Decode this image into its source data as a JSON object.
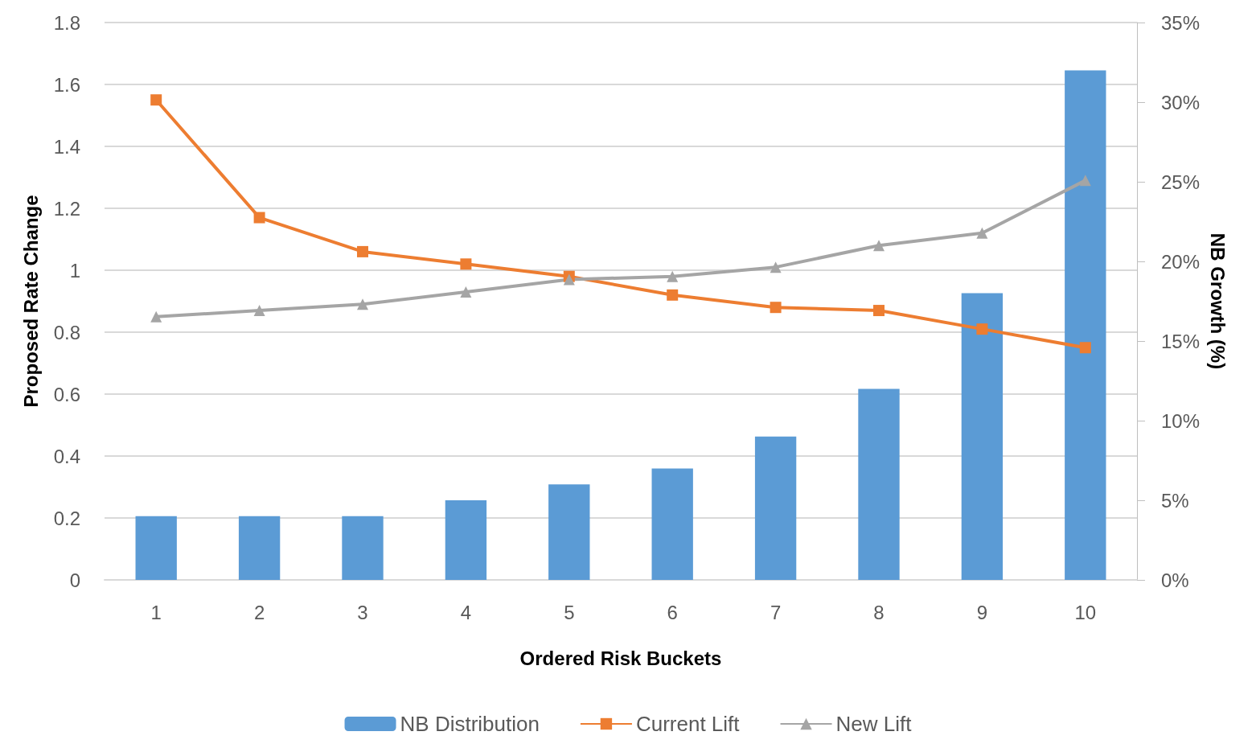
{
  "chart_data": {
    "type": "bar",
    "xlabel": "Ordered Risk Buckets",
    "ylabel": "Proposed Rate Change",
    "y2label": "NB Growth (%)",
    "categories": [
      "1",
      "2",
      "3",
      "4",
      "5",
      "6",
      "7",
      "8",
      "9",
      "10"
    ],
    "series": [
      {
        "name": "NB Distribution",
        "axis": "y2",
        "color": "#5b9bd5",
        "values": [
          4,
          4,
          4,
          5,
          6,
          7,
          9,
          12,
          18,
          32
        ]
      },
      {
        "name": "Current Lift",
        "type": "line",
        "marker": "square",
        "color": "#ed7d31",
        "values": [
          1.55,
          1.17,
          1.06,
          1.02,
          0.98,
          0.92,
          0.88,
          0.87,
          0.81,
          0.75
        ]
      },
      {
        "name": "New Lift",
        "type": "line",
        "marker": "triangle",
        "color": "#a5a5a5",
        "values": [
          0.85,
          0.87,
          0.89,
          0.93,
          0.97,
          0.98,
          1.01,
          1.08,
          1.12,
          1.29
        ]
      }
    ],
    "ylim": [
      0,
      1.8
    ],
    "yticks": [
      0,
      0.2,
      0.4,
      0.6,
      0.8,
      1,
      1.2,
      1.4,
      1.6,
      1.8
    ],
    "y2lim": [
      0,
      35
    ],
    "y2ticks": [
      {
        "value": 0,
        "label": "0%"
      },
      {
        "value": 5,
        "label": "5%"
      },
      {
        "value": 10,
        "label": "10%"
      },
      {
        "value": 15,
        "label": "15%"
      },
      {
        "value": 20,
        "label": "20%"
      },
      {
        "value": 25,
        "label": "25%"
      },
      {
        "value": 30,
        "label": "30%"
      },
      {
        "value": 35,
        "label": "35%"
      }
    ],
    "grid": "y",
    "legend": "bottom"
  }
}
